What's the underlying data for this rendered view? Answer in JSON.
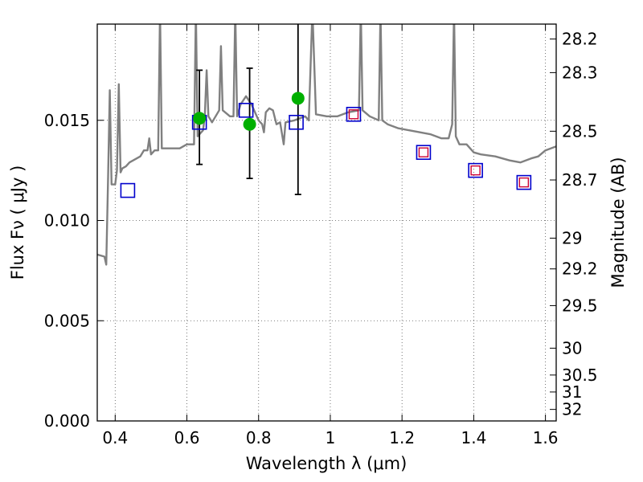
{
  "chart_data": {
    "type": "scatter",
    "xlabel": "Wavelength  λ (μm)",
    "ylabel": "Flux  Fν  ( μJy )",
    "ylabel_right": "Magnitude (AB)",
    "xlim": [
      0.35,
      1.63
    ],
    "ylim": [
      0.0,
      0.0198
    ],
    "grid": true,
    "x_ticks": [
      {
        "value": 0.4,
        "label": "0.4"
      },
      {
        "value": 0.6,
        "label": "0.6"
      },
      {
        "value": 0.8,
        "label": "0.8"
      },
      {
        "value": 1.0,
        "label": "1"
      },
      {
        "value": 1.2,
        "label": "1.2"
      },
      {
        "value": 1.4,
        "label": "1.4"
      },
      {
        "value": 1.6,
        "label": "1.6"
      }
    ],
    "y_ticks": [
      {
        "value": 0.0,
        "label": "0.000"
      },
      {
        "value": 0.005,
        "label": "0.005"
      },
      {
        "value": 0.01,
        "label": "0.010"
      },
      {
        "value": 0.015,
        "label": "0.015"
      }
    ],
    "right_ticks": [
      {
        "value": 28.2,
        "label": "28.2"
      },
      {
        "value": 28.3,
        "label": "28.3"
      },
      {
        "value": 28.5,
        "label": "28.5"
      },
      {
        "value": 28.7,
        "label": "28.7"
      },
      {
        "value": 29.0,
        "label": "29"
      },
      {
        "value": 29.2,
        "label": "29.2"
      },
      {
        "value": 29.5,
        "label": "29.5"
      },
      {
        "value": 30.0,
        "label": "30"
      },
      {
        "value": 30.5,
        "label": "30.5"
      },
      {
        "value": 31.0,
        "label": "31"
      },
      {
        "value": 32.0,
        "label": "32"
      }
    ],
    "colors": {
      "model": "#808080",
      "observed": "#00b000",
      "model_photometry": "#0000cc",
      "inner_squares": "#cc0033",
      "errorbar": "#000000",
      "grid": "#555555"
    },
    "series": [
      {
        "kind": "line",
        "points": [
          [
            0.35,
            0.0083
          ],
          [
            0.37,
            0.0082
          ],
          [
            0.375,
            0.0078
          ],
          [
            0.38,
            0.012
          ],
          [
            0.385,
            0.0165
          ],
          [
            0.39,
            0.0118
          ],
          [
            0.4,
            0.0118
          ],
          [
            0.405,
            0.0125
          ],
          [
            0.41,
            0.0168
          ],
          [
            0.415,
            0.0124
          ],
          [
            0.42,
            0.0126
          ],
          [
            0.43,
            0.0127
          ],
          [
            0.44,
            0.0129
          ],
          [
            0.45,
            0.013
          ],
          [
            0.47,
            0.0132
          ],
          [
            0.48,
            0.0135
          ],
          [
            0.49,
            0.0135
          ],
          [
            0.495,
            0.0141
          ],
          [
            0.5,
            0.0133
          ],
          [
            0.51,
            0.0135
          ],
          [
            0.52,
            0.0135
          ],
          [
            0.525,
            0.0205
          ],
          [
            0.53,
            0.0136
          ],
          [
            0.55,
            0.0136
          ],
          [
            0.58,
            0.0136
          ],
          [
            0.6,
            0.0138
          ],
          [
            0.62,
            0.0138
          ],
          [
            0.625,
            0.0205
          ],
          [
            0.63,
            0.0142
          ],
          [
            0.645,
            0.0145
          ],
          [
            0.65,
            0.0152
          ],
          [
            0.655,
            0.0175
          ],
          [
            0.66,
            0.0152
          ],
          [
            0.67,
            0.0149
          ],
          [
            0.69,
            0.0155
          ],
          [
            0.695,
            0.0187
          ],
          [
            0.7,
            0.0155
          ],
          [
            0.72,
            0.0152
          ],
          [
            0.73,
            0.0152
          ],
          [
            0.735,
            0.0205
          ],
          [
            0.74,
            0.0152
          ],
          [
            0.75,
            0.0158
          ],
          [
            0.765,
            0.0162
          ],
          [
            0.78,
            0.0158
          ],
          [
            0.8,
            0.015
          ],
          [
            0.81,
            0.0148
          ],
          [
            0.815,
            0.0144
          ],
          [
            0.82,
            0.0154
          ],
          [
            0.83,
            0.0156
          ],
          [
            0.84,
            0.0155
          ],
          [
            0.85,
            0.0148
          ],
          [
            0.86,
            0.0149
          ],
          [
            0.87,
            0.0138
          ],
          [
            0.875,
            0.0149
          ],
          [
            0.9,
            0.015
          ],
          [
            0.93,
            0.0152
          ],
          [
            0.94,
            0.015
          ],
          [
            0.95,
            0.0205
          ],
          [
            0.96,
            0.0153
          ],
          [
            0.99,
            0.0152
          ],
          [
            1.02,
            0.0152
          ],
          [
            1.05,
            0.0154
          ],
          [
            1.08,
            0.0155
          ],
          [
            1.085,
            0.0205
          ],
          [
            1.09,
            0.0155
          ],
          [
            1.11,
            0.0152
          ],
          [
            1.135,
            0.015
          ],
          [
            1.14,
            0.0205
          ],
          [
            1.145,
            0.015
          ],
          [
            1.16,
            0.0148
          ],
          [
            1.19,
            0.0146
          ],
          [
            1.22,
            0.0145
          ],
          [
            1.25,
            0.0144
          ],
          [
            1.28,
            0.0143
          ],
          [
            1.31,
            0.0141
          ],
          [
            1.33,
            0.0141
          ],
          [
            1.34,
            0.0148
          ],
          [
            1.345,
            0.0205
          ],
          [
            1.35,
            0.0142
          ],
          [
            1.36,
            0.0138
          ],
          [
            1.38,
            0.0138
          ],
          [
            1.4,
            0.0134
          ],
          [
            1.42,
            0.0133
          ],
          [
            1.46,
            0.0132
          ],
          [
            1.5,
            0.013
          ],
          [
            1.53,
            0.0129
          ],
          [
            1.56,
            0.0131
          ],
          [
            1.58,
            0.0132
          ],
          [
            1.6,
            0.0135
          ],
          [
            1.63,
            0.0137
          ]
        ]
      },
      {
        "kind": "observed-points",
        "x": [
          0.635,
          0.775,
          0.91
        ],
        "y": [
          0.0151,
          0.0148,
          0.0161
        ],
        "yerr_low": [
          0.0128,
          0.0121,
          0.0113
        ],
        "yerr_high": [
          0.0175,
          0.0176,
          0.0205
        ]
      },
      {
        "kind": "model-photometry",
        "x": [
          0.435,
          0.635,
          0.765,
          0.905,
          1.065,
          1.26,
          1.405,
          1.54
        ],
        "y": [
          0.0115,
          0.0149,
          0.0155,
          0.0149,
          0.0153,
          0.0134,
          0.0125,
          0.0119
        ]
      },
      {
        "kind": "inner-squares",
        "x": [
          1.065,
          1.26,
          1.405,
          1.54
        ],
        "y": [
          0.0153,
          0.0134,
          0.0125,
          0.0119
        ]
      }
    ]
  }
}
